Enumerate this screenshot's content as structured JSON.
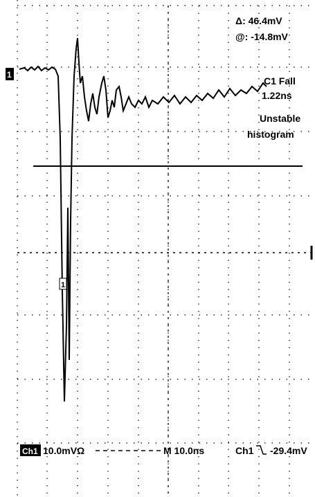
{
  "readout": {
    "delta": "Δ: 46.4mV",
    "at": "@: -14.8mV",
    "measure": "C1 Fall",
    "measure_value": "1.22ns",
    "status": "Unstable",
    "status_2": "histogram"
  },
  "markers": {
    "channel_left": "1",
    "cursor": "1"
  },
  "footer": {
    "channel": "Ch1",
    "scale": "10.0mVΩ",
    "timebase": "M 10.0ns",
    "trigger_source": "Ch1",
    "trigger_level": "-29.4mV"
  }
}
